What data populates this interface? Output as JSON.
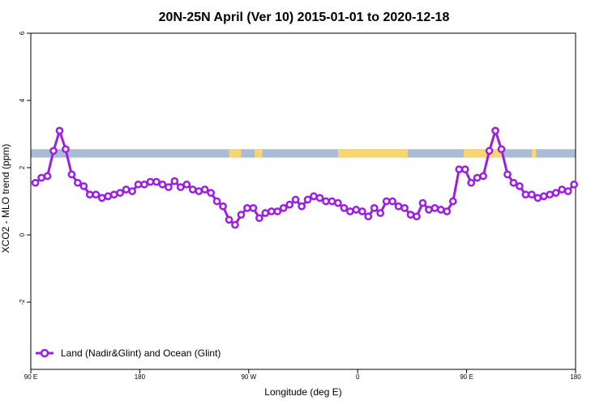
{
  "chart_data": {
    "type": "line",
    "title": "20N-25N April (Ver 10)   2015-01-01 to 2020-12-18",
    "xlabel": "Longitude (deg E)",
    "ylabel": "XCO2 - MLO trend (ppm)",
    "xlim": [
      0,
      360
    ],
    "ylim": [
      -4,
      6
    ],
    "x_ticks": [
      {
        "value": 0,
        "label": "90 E"
      },
      {
        "value": 72,
        "label": "180"
      },
      {
        "value": 144,
        "label": "90 W"
      },
      {
        "value": 216,
        "label": "0"
      },
      {
        "value": 288,
        "label": "90 E"
      },
      {
        "value": 360,
        "label": "180"
      }
    ],
    "y_ticks": [
      {
        "value": 6,
        "label": "6"
      },
      {
        "value": 4,
        "label": "4"
      },
      {
        "value": 2,
        "label": "2"
      },
      {
        "value": 0,
        "label": "0"
      },
      {
        "value": -2,
        "label": "-2"
      }
    ],
    "grid": false,
    "legend_position": "bottom-left",
    "land_band": {
      "y_range": [
        2.3,
        2.55
      ],
      "land_color": "#f8d472",
      "ocean_color": "#a9bcd6",
      "land_spans": [
        [
          131,
          139
        ],
        [
          148,
          153
        ],
        [
          203,
          249
        ],
        [
          286,
          312
        ],
        [
          331,
          334
        ]
      ]
    },
    "series": [
      {
        "name": "Land (Nadir&Glint) and Ocean (Glint)",
        "color": "#9b1ee6",
        "x": [
          3,
          7,
          11,
          15,
          19,
          23,
          27,
          31,
          35,
          39,
          43,
          47,
          51,
          55,
          59,
          63,
          67,
          71,
          75,
          79,
          83,
          87,
          91,
          95,
          99,
          103,
          107,
          111,
          115,
          119,
          123,
          127,
          131,
          135,
          139,
          143,
          147,
          151,
          155,
          159,
          163,
          167,
          171,
          175,
          179,
          183,
          187,
          191,
          195,
          199,
          203,
          207,
          211,
          215,
          219,
          223,
          227,
          231,
          235,
          239,
          243,
          247,
          251,
          255,
          259,
          263,
          267,
          271,
          275,
          279,
          283,
          287,
          291,
          295,
          299,
          303,
          307,
          311,
          315,
          319,
          323,
          327,
          331,
          335,
          339,
          343,
          347,
          351,
          355,
          359
        ],
        "y": [
          1.55,
          1.7,
          1.75,
          2.5,
          3.1,
          2.55,
          1.8,
          1.55,
          1.45,
          1.2,
          1.2,
          1.1,
          1.15,
          1.2,
          1.25,
          1.35,
          1.3,
          1.5,
          1.5,
          1.58,
          1.58,
          1.5,
          1.42,
          1.6,
          1.42,
          1.5,
          1.35,
          1.3,
          1.35,
          1.25,
          1.0,
          0.85,
          0.45,
          0.3,
          0.6,
          0.8,
          0.8,
          0.5,
          0.65,
          0.7,
          0.7,
          0.8,
          0.9,
          1.05,
          0.85,
          1.05,
          1.15,
          1.1,
          1.0,
          1.0,
          0.95,
          0.8,
          0.7,
          0.75,
          0.7,
          0.55,
          0.8,
          0.65,
          1.0,
          1.0,
          0.85,
          0.8,
          0.6,
          0.55,
          0.95,
          0.75,
          0.8,
          0.75,
          0.7,
          1.0,
          1.95,
          1.95,
          1.55,
          1.7,
          1.75,
          2.5,
          3.1,
          2.55,
          1.8,
          1.55,
          1.45,
          1.2,
          1.2,
          1.1,
          1.15,
          1.2,
          1.25,
          1.35,
          1.3,
          1.5
        ]
      }
    ]
  }
}
